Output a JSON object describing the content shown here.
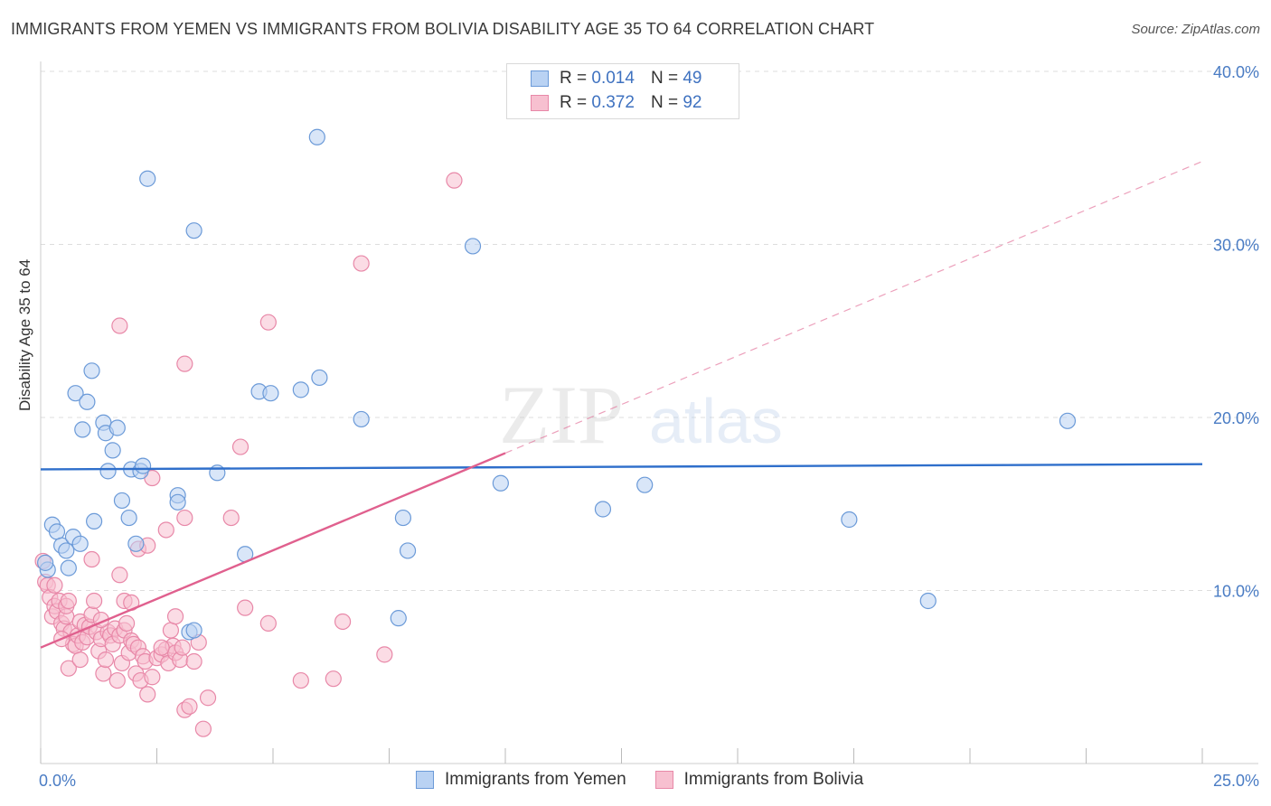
{
  "title": "IMMIGRANTS FROM YEMEN VS IMMIGRANTS FROM BOLIVIA DISABILITY AGE 35 TO 64 CORRELATION CHART",
  "source": "Source: ZipAtlas.com",
  "watermark": {
    "zip": "ZIP",
    "atlas": "atlas"
  },
  "legend": {
    "rows": [
      {
        "r_label": "R =",
        "r_value": "0.014",
        "n_label": "N =",
        "n_value": "49"
      },
      {
        "r_label": "R =",
        "r_value": "0.372",
        "n_label": "N =",
        "n_value": "92"
      }
    ]
  },
  "colors": {
    "yemen_fill": "#b9d2f3",
    "yemen_stroke": "#6b9ad8",
    "yemen_line": "#2f6fcb",
    "bolivia_fill": "#f7c0d0",
    "bolivia_stroke": "#e888a8",
    "bolivia_line": "#e0608e",
    "grid": "#dddddd",
    "tick_text": "#4a7cc4"
  },
  "chart_data": {
    "type": "scatter",
    "title": "IMMIGRANTS FROM YEMEN VS IMMIGRANTS FROM BOLIVIA DISABILITY AGE 35 TO 64 CORRELATION CHART",
    "xlabel": "",
    "ylabel": "Disability Age 35 to 64",
    "xlim": [
      0,
      25
    ],
    "ylim": [
      0,
      40
    ],
    "x_ticks": [
      "0.0%",
      "25.0%"
    ],
    "y_ticks": [
      {
        "value": 10,
        "label": "10.0%"
      },
      {
        "value": 20,
        "label": "20.0%"
      },
      {
        "value": 30,
        "label": "30.0%"
      },
      {
        "value": 40,
        "label": "40.0%"
      }
    ],
    "series": [
      {
        "name": "Immigrants from Yemen",
        "r": 0.014,
        "n": 49,
        "trend": {
          "x0": 0,
          "y0": 17.0,
          "x1": 25,
          "y1": 17.3,
          "dashed_from": null
        },
        "points": [
          [
            0.15,
            11.2
          ],
          [
            0.25,
            13.8
          ],
          [
            0.35,
            13.4
          ],
          [
            0.45,
            12.6
          ],
          [
            0.55,
            12.3
          ],
          [
            0.6,
            11.3
          ],
          [
            0.7,
            13.1
          ],
          [
            0.75,
            21.4
          ],
          [
            0.85,
            12.7
          ],
          [
            0.9,
            19.3
          ],
          [
            1.0,
            20.9
          ],
          [
            1.1,
            22.7
          ],
          [
            1.15,
            14.0
          ],
          [
            1.35,
            19.7
          ],
          [
            1.4,
            19.1
          ],
          [
            1.45,
            16.9
          ],
          [
            1.55,
            18.1
          ],
          [
            1.65,
            19.4
          ],
          [
            1.75,
            15.2
          ],
          [
            1.9,
            14.2
          ],
          [
            1.95,
            17.0
          ],
          [
            2.05,
            12.7
          ],
          [
            2.15,
            16.9
          ],
          [
            2.2,
            17.2
          ],
          [
            2.3,
            33.8
          ],
          [
            2.95,
            15.5
          ],
          [
            2.95,
            15.1
          ],
          [
            3.2,
            7.6
          ],
          [
            3.3,
            7.7
          ],
          [
            3.3,
            30.8
          ],
          [
            3.8,
            16.8
          ],
          [
            4.4,
            12.1
          ],
          [
            4.7,
            21.5
          ],
          [
            4.95,
            21.4
          ],
          [
            5.6,
            21.6
          ],
          [
            5.95,
            36.2
          ],
          [
            6.0,
            22.3
          ],
          [
            6.9,
            19.9
          ],
          [
            7.7,
            8.4
          ],
          [
            7.8,
            14.2
          ],
          [
            7.9,
            12.3
          ],
          [
            9.3,
            29.9
          ],
          [
            9.9,
            16.2
          ],
          [
            12.1,
            14.7
          ],
          [
            13.0,
            16.1
          ],
          [
            17.4,
            14.1
          ],
          [
            19.1,
            9.4
          ],
          [
            22.1,
            19.8
          ],
          [
            0.1,
            11.6
          ]
        ]
      },
      {
        "name": "Immigrants from Bolivia",
        "r": 0.372,
        "n": 92,
        "trend": {
          "x0": 0,
          "y0": 6.7,
          "x1": 25,
          "y1": 34.8,
          "dashed_from": 10.0
        },
        "points": [
          [
            0.05,
            11.7
          ],
          [
            0.1,
            10.5
          ],
          [
            0.15,
            10.3
          ],
          [
            0.2,
            9.6
          ],
          [
            0.25,
            8.5
          ],
          [
            0.3,
            9.1
          ],
          [
            0.35,
            8.8
          ],
          [
            0.4,
            9.4
          ],
          [
            0.45,
            8.1
          ],
          [
            0.5,
            7.8
          ],
          [
            0.55,
            8.5
          ],
          [
            0.55,
            9.1
          ],
          [
            0.6,
            9.4
          ],
          [
            0.65,
            7.6
          ],
          [
            0.7,
            6.9
          ],
          [
            0.75,
            6.8
          ],
          [
            0.8,
            7.4
          ],
          [
            0.85,
            8.2
          ],
          [
            0.9,
            7.0
          ],
          [
            0.95,
            8.0
          ],
          [
            1.0,
            7.3
          ],
          [
            1.05,
            7.9
          ],
          [
            1.1,
            8.6
          ],
          [
            1.15,
            9.4
          ],
          [
            1.2,
            7.6
          ],
          [
            1.25,
            6.5
          ],
          [
            1.3,
            7.2
          ],
          [
            1.35,
            5.2
          ],
          [
            1.4,
            6.0
          ],
          [
            1.45,
            7.6
          ],
          [
            1.5,
            7.4
          ],
          [
            1.55,
            6.9
          ],
          [
            1.6,
            7.8
          ],
          [
            1.65,
            4.8
          ],
          [
            1.7,
            7.4
          ],
          [
            1.75,
            5.8
          ],
          [
            1.8,
            7.7
          ],
          [
            1.85,
            8.1
          ],
          [
            1.9,
            6.4
          ],
          [
            1.95,
            7.1
          ],
          [
            2.0,
            6.9
          ],
          [
            2.05,
            5.2
          ],
          [
            2.1,
            6.7
          ],
          [
            2.15,
            4.8
          ],
          [
            2.2,
            6.2
          ],
          [
            2.25,
            5.9
          ],
          [
            2.3,
            4.0
          ],
          [
            2.4,
            5.0
          ],
          [
            2.5,
            6.1
          ],
          [
            2.6,
            6.3
          ],
          [
            2.7,
            6.6
          ],
          [
            2.75,
            5.8
          ],
          [
            2.8,
            7.7
          ],
          [
            2.85,
            6.8
          ],
          [
            2.9,
            6.4
          ],
          [
            3.0,
            6.0
          ],
          [
            3.05,
            6.7
          ],
          [
            3.1,
            3.1
          ],
          [
            3.2,
            3.3
          ],
          [
            3.3,
            5.9
          ],
          [
            3.4,
            7.0
          ],
          [
            3.5,
            2.0
          ],
          [
            3.6,
            3.8
          ],
          [
            1.7,
            10.9
          ],
          [
            1.8,
            9.4
          ],
          [
            2.1,
            12.4
          ],
          [
            2.3,
            12.6
          ],
          [
            2.4,
            16.5
          ],
          [
            2.7,
            13.5
          ],
          [
            2.9,
            8.5
          ],
          [
            3.1,
            14.2
          ],
          [
            4.1,
            14.2
          ],
          [
            4.4,
            9.0
          ],
          [
            4.3,
            18.3
          ],
          [
            4.9,
            8.1
          ],
          [
            4.9,
            25.5
          ],
          [
            5.6,
            4.8
          ],
          [
            6.3,
            4.9
          ],
          [
            6.5,
            8.2
          ],
          [
            6.9,
            28.9
          ],
          [
            7.4,
            6.3
          ],
          [
            8.9,
            33.7
          ],
          [
            3.1,
            23.1
          ],
          [
            1.7,
            25.3
          ],
          [
            0.6,
            5.5
          ],
          [
            1.1,
            11.8
          ],
          [
            0.3,
            10.3
          ],
          [
            0.45,
            7.2
          ],
          [
            0.85,
            6.0
          ],
          [
            2.6,
            6.7
          ],
          [
            1.3,
            8.3
          ],
          [
            1.95,
            9.3
          ]
        ]
      }
    ]
  },
  "bottom_legend": [
    "Immigrants from Yemen",
    "Immigrants from Bolivia"
  ]
}
